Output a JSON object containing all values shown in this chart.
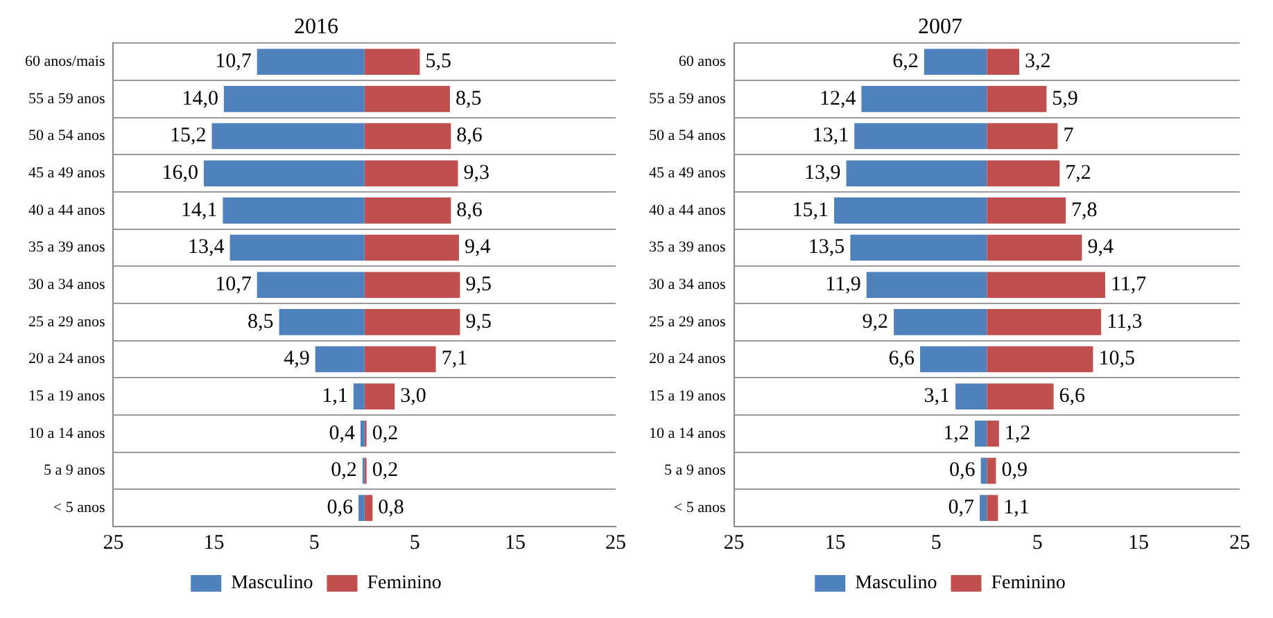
{
  "chart_data": [
    {
      "type": "bar",
      "title": "2016",
      "orientation": "horizontal",
      "grid": "y",
      "legend": "bottom",
      "categories": [
        "60 anos/mais",
        "55 a 59 anos",
        "50 a 54 anos",
        "45 a 49 anos",
        "40 a 44 anos",
        "35 a 39 anos",
        "30 a 34 anos",
        "25 a 29 anos",
        "20 a 24 anos",
        "15 a 19 anos",
        "10 a 14 anos",
        "5 a 9 anos",
        "< 5 anos"
      ],
      "xlim": [
        -25,
        25
      ],
      "xticks": [
        {
          "value": -25,
          "label": "25"
        },
        {
          "value": -15,
          "label": "15"
        },
        {
          "value": -5,
          "label": "5"
        },
        5,
        15,
        25
      ],
      "series": [
        {
          "name": "Masculino",
          "color": "#4f81bd",
          "base": [
            -10.7,
            -14.0,
            -15.2,
            -16.0,
            -14.1,
            -13.4,
            -10.7,
            -8.5,
            -4.9,
            -1.1,
            -0.4,
            -0.2,
            -0.6
          ],
          "values": [
            10.7,
            14.0,
            15.2,
            16.0,
            14.1,
            13.4,
            10.7,
            8.5,
            4.9,
            1.1,
            0.4,
            0.2,
            0.6
          ],
          "value_labels": [
            "10,7",
            "14,0",
            "15,2",
            "16,0",
            "14,1",
            "13,4",
            "10,7",
            "8,5",
            "4,9",
            "1,1",
            "0,4",
            "0,2",
            "0,6"
          ]
        },
        {
          "name": "Feminino",
          "color": "#c0504d",
          "values": [
            5.5,
            8.5,
            8.6,
            9.3,
            8.6,
            9.4,
            9.5,
            9.5,
            7.1,
            3.0,
            0.2,
            0.2,
            0.8
          ],
          "value_labels": [
            "5,5",
            "8,5",
            "8,6",
            "9,3",
            "8,6",
            "9,4",
            "9,5",
            "9,5",
            "7,1",
            "3,0",
            "0,2",
            "0,2",
            "0,8"
          ]
        }
      ]
    },
    {
      "type": "bar",
      "title": "2007",
      "orientation": "horizontal",
      "grid": "y",
      "legend": "bottom",
      "categories": [
        "60 anos",
        "55 a 59 anos",
        "50 a 54 anos",
        "45 a 49 anos",
        "40 a 44 anos",
        "35 a 39 anos",
        "30 a 34 anos",
        "25 a 29 anos",
        "20 a 24 anos",
        "15 a 19 anos",
        "10 a 14 anos",
        "5 a 9 anos",
        "< 5 anos"
      ],
      "xlim": [
        -25,
        25
      ],
      "xticks": [
        {
          "value": -25,
          "label": "25"
        },
        {
          "value": -15,
          "label": "15"
        },
        {
          "value": -5,
          "label": "5"
        },
        5,
        15,
        25
      ],
      "series": [
        {
          "name": "Masculino",
          "color": "#4f81bd",
          "base": [
            -6.2,
            -12.4,
            -13.1,
            -13.9,
            -15.1,
            -13.5,
            -11.9,
            -9.2,
            -6.6,
            -3.1,
            -1.2,
            -0.6,
            -0.7
          ],
          "values": [
            6.2,
            12.4,
            13.1,
            13.9,
            15.1,
            13.5,
            11.9,
            9.2,
            6.6,
            3.1,
            1.2,
            0.6,
            0.7
          ],
          "value_labels": [
            "6,2",
            "12,4",
            "13,1",
            "13,9",
            "15,1",
            "13,5",
            "11,9",
            "9,2",
            "6,6",
            "3,1",
            "1,2",
            "0,6",
            "0,7"
          ]
        },
        {
          "name": "Feminino",
          "color": "#c0504d",
          "values": [
            3.2,
            5.9,
            7,
            7.2,
            7.8,
            9.4,
            11.7,
            11.3,
            10.5,
            6.6,
            1.2,
            0.9,
            1.1
          ],
          "value_labels": [
            "3,2",
            "5,9",
            "7",
            "7,2",
            "7,8",
            "9,4",
            "11,7",
            "11,3",
            "10,5",
            "6,6",
            "1,2",
            "0,9",
            "1,1"
          ]
        }
      ]
    }
  ]
}
